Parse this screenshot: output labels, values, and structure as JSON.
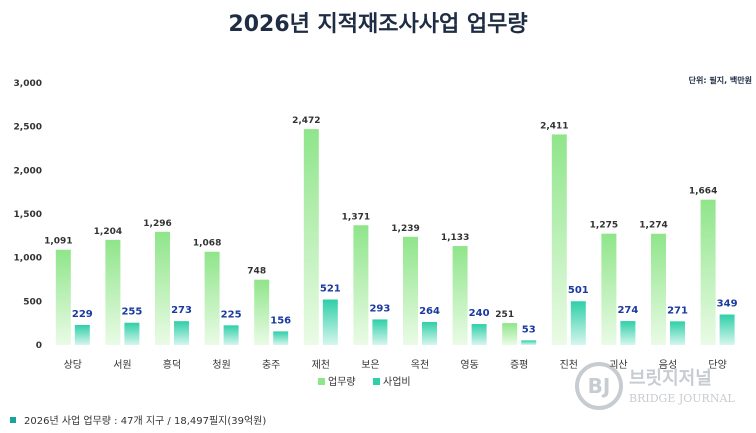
{
  "chart_data": {
    "type": "bar",
    "title": "2026년 지적재조사사업 업무량",
    "unit_note": "단위: 필지, 백만원",
    "categories": [
      "상당",
      "서원",
      "흥덕",
      "청원",
      "충주",
      "제천",
      "보은",
      "옥천",
      "영동",
      "증평",
      "진천",
      "괴산",
      "음성",
      "단양"
    ],
    "series": [
      {
        "name": "업무량",
        "values": [
          1091,
          1204,
          1296,
          1068,
          748,
          2472,
          1371,
          1239,
          1133,
          251,
          2411,
          1275,
          1274,
          1664
        ]
      },
      {
        "name": "사업비",
        "values": [
          229,
          255,
          273,
          225,
          156,
          521,
          293,
          264,
          240,
          53,
          501,
          274,
          271,
          349
        ]
      }
    ],
    "ylim": [
      0,
      3000
    ],
    "yticks": [
      "0",
      "500",
      "1,000",
      "1,500",
      "2,000",
      "2,500",
      "3,000"
    ],
    "grid": false,
    "legend": "bottom"
  },
  "colors": {
    "series1_top": "#8fe58a",
    "series1_bottom": "#eafbe6",
    "series2_top": "#2fcfa8",
    "series2_bottom": "#d6f6ee",
    "accent": "#1aa39a"
  },
  "footnote": "2026년 사업 업무량 : 47개 지구 / 18,497필지(39억원)",
  "watermark": {
    "logo": "BJ",
    "text_ko": "브릿지저널",
    "text_en": "BRIDGE JOURNAL"
  }
}
